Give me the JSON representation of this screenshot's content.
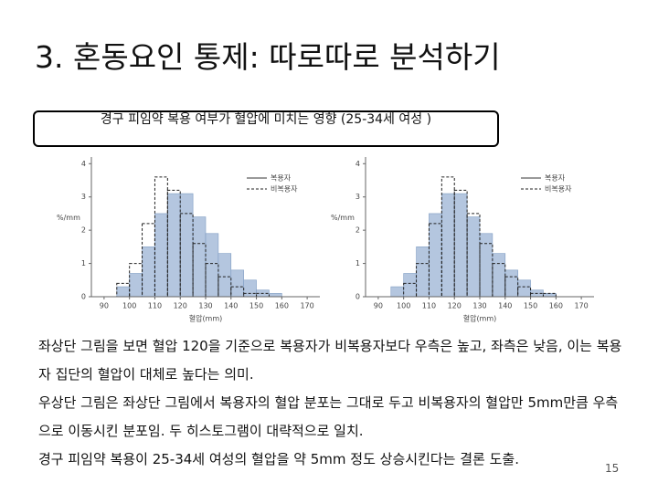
{
  "slide": {
    "title": "3. 혼동요인 통제: 따로따로 분석하기",
    "caption": "경구 피임약 복용 여부가 혈압에 미치는 영향 (25-34세 여성 )",
    "paragraphs": [
      "좌상단 그림을 보면 혈압 120을 기준으로 복용자가 비복용자보다 우측은 높고, 좌측은 낮음, 이는 복용자 집단의 혈압이 대체로 높다는 의미.",
      "우상단 그림은 좌상단 그림에서 복용자의 혈압 분포는 그대로 두고 비복용자의 혈압만 5mm만큼 우측으로 이동시킨 분포임. 두 히스토그램이 대략적으로 일치.",
      "경구 피임약 복용이 25-34세 여성의 혈압을 약 5mm 정도 상승시킨다는 결론 도출."
    ],
    "page_number": "15"
  },
  "chart_data": [
    {
      "type": "histogram",
      "xlabel": "혈압(mm)",
      "ylabel": "%/mm",
      "bins": [
        95,
        100,
        105,
        110,
        115,
        120,
        125,
        130,
        135,
        140,
        145,
        150,
        155,
        160,
        165
      ],
      "series": [
        {
          "name": "복용자",
          "color": "#b4c6df",
          "line_style": "solid",
          "values": [
            0.3,
            0.7,
            1.5,
            2.5,
            3.1,
            3.1,
            2.4,
            1.9,
            1.3,
            0.8,
            0.5,
            0.2,
            0.1,
            0
          ]
        },
        {
          "name": "비복용자",
          "color": "#222222",
          "line_style": "dashed",
          "values": [
            0.4,
            1.0,
            2.2,
            3.6,
            3.2,
            2.5,
            1.6,
            1.0,
            0.6,
            0.3,
            0.1,
            0.1,
            0,
            0
          ]
        }
      ],
      "xlim": [
        85,
        175
      ],
      "ylim": [
        0,
        4.2
      ],
      "xticks": [
        90,
        100,
        110,
        120,
        130,
        140,
        150,
        160,
        170
      ],
      "yticks": [
        0,
        1,
        2,
        3,
        4
      ]
    },
    {
      "type": "histogram",
      "xlabel": "혈압(mm)",
      "ylabel": "%/mm",
      "bins": [
        95,
        100,
        105,
        110,
        115,
        120,
        125,
        130,
        135,
        140,
        145,
        150,
        155,
        160,
        165
      ],
      "series": [
        {
          "name": "복용자",
          "color": "#b4c6df",
          "line_style": "solid",
          "values": [
            0.3,
            0.7,
            1.5,
            2.5,
            3.1,
            3.1,
            2.4,
            1.9,
            1.3,
            0.8,
            0.5,
            0.2,
            0.1,
            0
          ]
        },
        {
          "name": "비복용자",
          "color": "#222222",
          "line_style": "dashed",
          "values": [
            0,
            0.4,
            1.0,
            2.2,
            3.6,
            3.2,
            2.5,
            1.6,
            1.0,
            0.6,
            0.3,
            0.1,
            0.1,
            0
          ]
        }
      ],
      "xlim": [
        85,
        175
      ],
      "ylim": [
        0,
        4.2
      ],
      "xticks": [
        90,
        100,
        110,
        120,
        130,
        140,
        150,
        160,
        170
      ],
      "yticks": [
        0,
        1,
        2,
        3,
        4
      ]
    }
  ]
}
